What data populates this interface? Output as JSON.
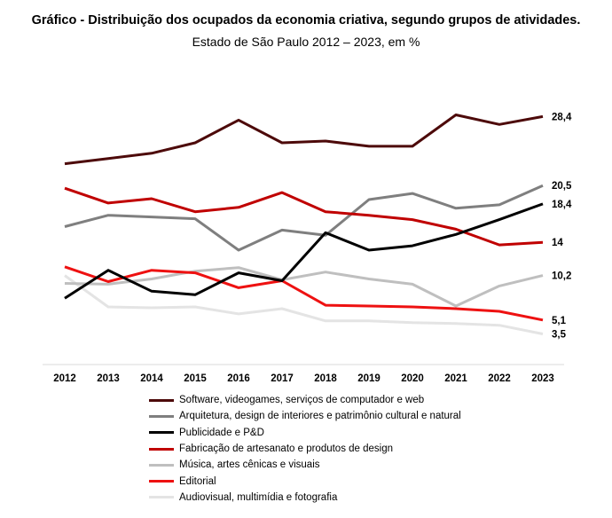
{
  "chart_data": {
    "type": "line",
    "title": "Gráfico - Distribuição dos ocupados da economia criativa, segundo grupos de atividades.",
    "subtitle": "Estado de São Paulo 2012 – 2023, em %",
    "xlabel": "",
    "ylabel": "",
    "x": [
      "2012",
      "2013",
      "2014",
      "2015",
      "2016",
      "2017",
      "2018",
      "2019",
      "2020",
      "2021",
      "2022",
      "2023"
    ],
    "ylim": [
      0,
      32
    ],
    "grid": false,
    "legend_position": "bottom",
    "series": [
      {
        "name": "Software, videogames, serviços de computador e web",
        "color": "#4d0a0a",
        "values": [
          23.0,
          23.6,
          24.2,
          25.4,
          28.0,
          25.4,
          25.6,
          25.0,
          25.0,
          28.6,
          27.5,
          28.4
        ],
        "end_label": "28,4"
      },
      {
        "name": "Arquitetura, design de interiores e patrimônio cultural e natural",
        "color": "#7f7f7f",
        "values": [
          15.8,
          17.1,
          16.9,
          16.7,
          13.1,
          15.4,
          14.8,
          18.9,
          19.6,
          17.9,
          18.3,
          20.5
        ],
        "end_label": "20,5"
      },
      {
        "name": "Publicidade e P&D",
        "color": "#000000",
        "values": [
          7.6,
          10.8,
          8.4,
          8.0,
          10.5,
          9.6,
          15.1,
          13.1,
          13.6,
          14.9,
          16.6,
          18.4
        ],
        "end_label": "18,4"
      },
      {
        "name": "Fabricação de artesanato e produtos de design",
        "color": "#c00000",
        "values": [
          20.2,
          18.5,
          19.0,
          17.5,
          18.0,
          19.7,
          17.5,
          17.1,
          16.6,
          15.5,
          13.7,
          14.0
        ],
        "end_label": "14"
      },
      {
        "name": "Música, artes cênicas e visuais",
        "color": "#bfbfbf",
        "values": [
          9.3,
          9.2,
          9.8,
          10.7,
          11.1,
          9.7,
          10.6,
          9.8,
          9.2,
          6.7,
          9.0,
          10.2
        ],
        "end_label": "10,2"
      },
      {
        "name": "Editorial",
        "color": "#ee1111",
        "values": [
          11.2,
          9.5,
          10.8,
          10.5,
          8.8,
          9.6,
          6.8,
          6.7,
          6.6,
          6.4,
          6.1,
          5.1
        ],
        "end_label": "5,1"
      },
      {
        "name": "Audiovisual, multimídia e fotografia",
        "color": "#e4e4e4",
        "values": [
          10.2,
          6.6,
          6.5,
          6.6,
          5.8,
          6.4,
          5.0,
          5.0,
          4.8,
          4.7,
          4.5,
          3.5
        ],
        "end_label": "3,5"
      }
    ]
  }
}
